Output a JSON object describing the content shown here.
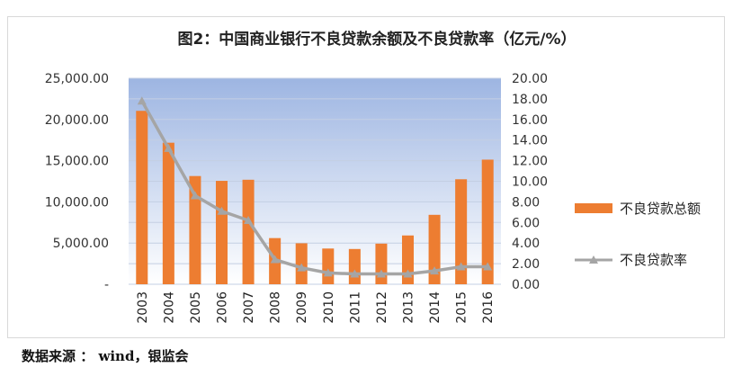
{
  "chart_data": {
    "type": "bar",
    "title": "图2：中国商业银行不良贷款余额及不良贷款率（亿元/%）",
    "categories": [
      "2003",
      "2004",
      "2005",
      "2006",
      "2007",
      "2008",
      "2009",
      "2010",
      "2011",
      "2012",
      "2013",
      "2014",
      "2015",
      "2016"
    ],
    "series": [
      {
        "name": "不良贷款总额",
        "type": "bar",
        "axis": "left",
        "color": "#ED7D31",
        "values": [
          21045,
          17176,
          13134,
          12549,
          12684,
          5603,
          4973,
          4336,
          4279,
          4929,
          5921,
          8426,
          12744,
          15123
        ]
      },
      {
        "name": "不良贷款率",
        "type": "line",
        "axis": "right",
        "color": "#A5A5A5",
        "values": [
          17.8,
          13.2,
          8.6,
          7.1,
          6.2,
          2.4,
          1.6,
          1.1,
          1.0,
          1.0,
          1.0,
          1.3,
          1.7,
          1.7
        ]
      }
    ],
    "y_left": {
      "ylim": [
        0,
        25000
      ],
      "ticks": [
        0,
        5000,
        10000,
        15000,
        20000,
        25000
      ],
      "tick_labels": [
        "-",
        "5,000.00",
        "10,000.00",
        "15,000.00",
        "20,000.00",
        "25,000.00"
      ]
    },
    "y_right": {
      "ylim": [
        0,
        20
      ],
      "ticks": [
        0,
        2,
        4,
        6,
        8,
        10,
        12,
        14,
        16,
        18,
        20
      ],
      "tick_labels": [
        "0.00",
        "2.00",
        "4.00",
        "6.00",
        "8.00",
        "10.00",
        "12.00",
        "14.00",
        "16.00",
        "18.00",
        "20.00"
      ]
    },
    "legend_position": "right",
    "plot_background": "gradient-blue",
    "grid": true
  },
  "source": "数据来源 ： wind，银监会"
}
